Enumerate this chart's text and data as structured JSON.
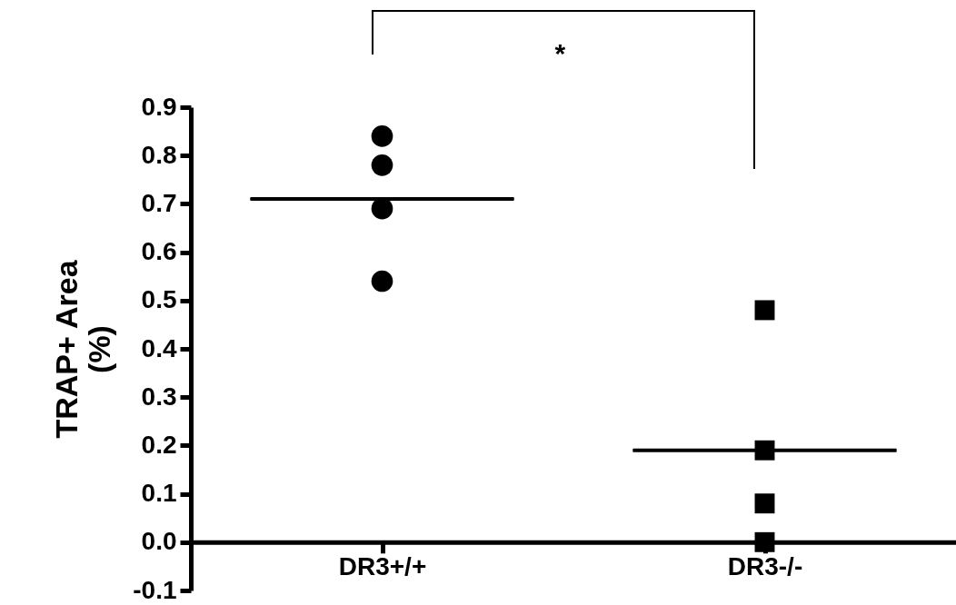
{
  "chart_data": {
    "type": "scatter",
    "ylabel": "TRAP+ Area (%)",
    "categories": [
      "DR3+/+",
      "DR3-/-"
    ],
    "ylim": [
      -0.1,
      0.9
    ],
    "yticks": [
      -0.1,
      {
        "value": 0,
        "label": "0.0"
      },
      0.1,
      0.2,
      0.3,
      0.4,
      0.5,
      0.6,
      0.7,
      0.8,
      0.9
    ],
    "annotations": [
      "*"
    ],
    "series": [
      {
        "marker": "circle",
        "color": "#000000",
        "x": [
          "DR3+/+",
          "DR3+/+",
          "DR3+/+",
          "DR3+/+"
        ],
        "values": [
          0.84,
          0.78,
          0.69,
          0.54
        ]
      },
      {
        "marker": "square",
        "color": "#000000",
        "x": [
          "DR3-/-",
          "DR3-/-",
          "DR3-/-",
          "DR3-/-"
        ],
        "values": [
          0.48,
          0.19,
          0.08,
          0.0
        ]
      },
      {
        "type": "box",
        "color": "#000000",
        "boxes": [
          {
            "low": 0.71,
            "q1": 0.71,
            "median": 0.71,
            "q3": 0.71,
            "high": 0.71
          },
          {
            "low": 0.19,
            "q1": 0.19,
            "median": 0.19,
            "q3": 0.19,
            "high": 0.19
          }
        ]
      }
    ]
  }
}
